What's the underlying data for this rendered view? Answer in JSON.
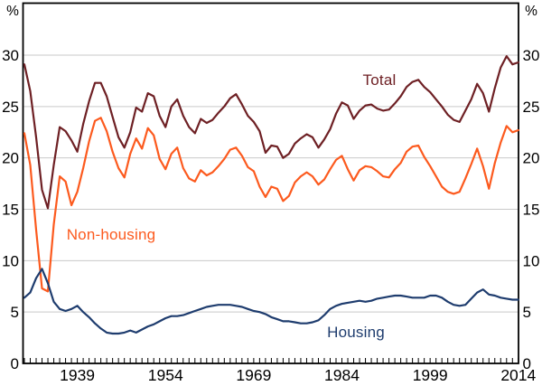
{
  "chart_data": {
    "type": "line",
    "unit": "%",
    "x_start": 1930,
    "x_end": 2014,
    "x_tick_step": 1,
    "x_tick_label_years": [
      1939,
      1954,
      1969,
      1984,
      1999,
      2014
    ],
    "y_ticks": [
      0,
      5,
      10,
      15,
      20,
      25,
      30
    ],
    "ylim": [
      0,
      35
    ],
    "grid": "horizontal",
    "gridline_color": "#c9c9c9",
    "axis_color": "#000000",
    "legend_position": "inline-labels",
    "series": [
      {
        "name": "total",
        "label": "Total",
        "color": "#6e2024",
        "values": [
          29.1,
          26.5,
          22.0,
          16.9,
          15.1,
          19.3,
          23.0,
          22.6,
          21.7,
          20.6,
          23.3,
          25.5,
          27.3,
          27.3,
          26.0,
          24.0,
          22.0,
          21.0,
          22.5,
          24.9,
          24.5,
          26.3,
          26.0,
          24.1,
          23.0,
          25.0,
          25.7,
          24.1,
          23.0,
          22.4,
          23.8,
          23.4,
          23.7,
          24.4,
          25.0,
          25.8,
          26.2,
          25.2,
          24.1,
          23.5,
          22.6,
          20.5,
          21.2,
          21.1,
          20.0,
          20.4,
          21.4,
          21.9,
          22.3,
          22.0,
          21.0,
          21.8,
          22.8,
          24.3,
          25.4,
          25.1,
          23.8,
          24.6,
          25.1,
          25.2,
          24.8,
          24.6,
          24.7,
          25.3,
          26.0,
          26.9,
          27.4,
          27.6,
          26.9,
          26.4,
          25.7,
          25.0,
          24.2,
          23.7,
          23.5,
          24.6,
          25.7,
          27.2,
          26.3,
          24.5,
          26.8,
          28.8,
          29.9,
          29.1,
          29.3
        ]
      },
      {
        "name": "non_housing",
        "label": "Non-housing",
        "color": "#fc5a1e",
        "values": [
          22.4,
          19.3,
          13.0,
          7.3,
          7.0,
          13.5,
          18.2,
          17.7,
          15.4,
          16.7,
          19.0,
          21.6,
          23.6,
          23.9,
          22.6,
          20.6,
          19.0,
          18.1,
          20.4,
          21.9,
          20.9,
          22.9,
          22.2,
          19.9,
          18.9,
          20.4,
          21.0,
          19.0,
          18.0,
          17.7,
          18.8,
          18.3,
          18.6,
          19.2,
          19.9,
          20.8,
          21.0,
          20.2,
          19.1,
          18.7,
          17.2,
          16.2,
          17.2,
          17.0,
          15.8,
          16.3,
          17.6,
          18.2,
          18.6,
          18.2,
          17.4,
          17.9,
          18.9,
          19.8,
          20.2,
          18.9,
          17.8,
          18.8,
          19.2,
          19.1,
          18.7,
          18.2,
          18.1,
          18.9,
          19.5,
          20.6,
          21.1,
          21.2,
          20.1,
          19.2,
          18.2,
          17.2,
          16.7,
          16.5,
          16.7,
          18.0,
          19.4,
          20.9,
          19.2,
          17.0,
          19.5,
          21.5,
          23.1,
          22.5,
          22.7
        ]
      },
      {
        "name": "housing",
        "label": "Housing",
        "color": "#1e3c6e",
        "values": [
          6.4,
          6.9,
          8.3,
          9.2,
          7.8,
          6.0,
          5.3,
          5.1,
          5.3,
          5.6,
          5.0,
          4.5,
          3.9,
          3.4,
          3.0,
          2.9,
          2.9,
          3.0,
          3.2,
          3.0,
          3.3,
          3.6,
          3.8,
          4.1,
          4.4,
          4.6,
          4.6,
          4.7,
          4.9,
          5.1,
          5.3,
          5.5,
          5.6,
          5.7,
          5.7,
          5.7,
          5.6,
          5.5,
          5.3,
          5.1,
          5.0,
          4.8,
          4.5,
          4.3,
          4.1,
          4.1,
          4.0,
          3.9,
          3.9,
          4.0,
          4.2,
          4.7,
          5.3,
          5.6,
          5.8,
          5.9,
          6.0,
          6.1,
          6.0,
          6.1,
          6.3,
          6.4,
          6.5,
          6.6,
          6.6,
          6.5,
          6.4,
          6.4,
          6.4,
          6.6,
          6.6,
          6.4,
          6.0,
          5.7,
          5.6,
          5.7,
          6.3,
          6.9,
          7.2,
          6.7,
          6.6,
          6.4,
          6.3,
          6.2,
          6.2
        ]
      }
    ]
  }
}
